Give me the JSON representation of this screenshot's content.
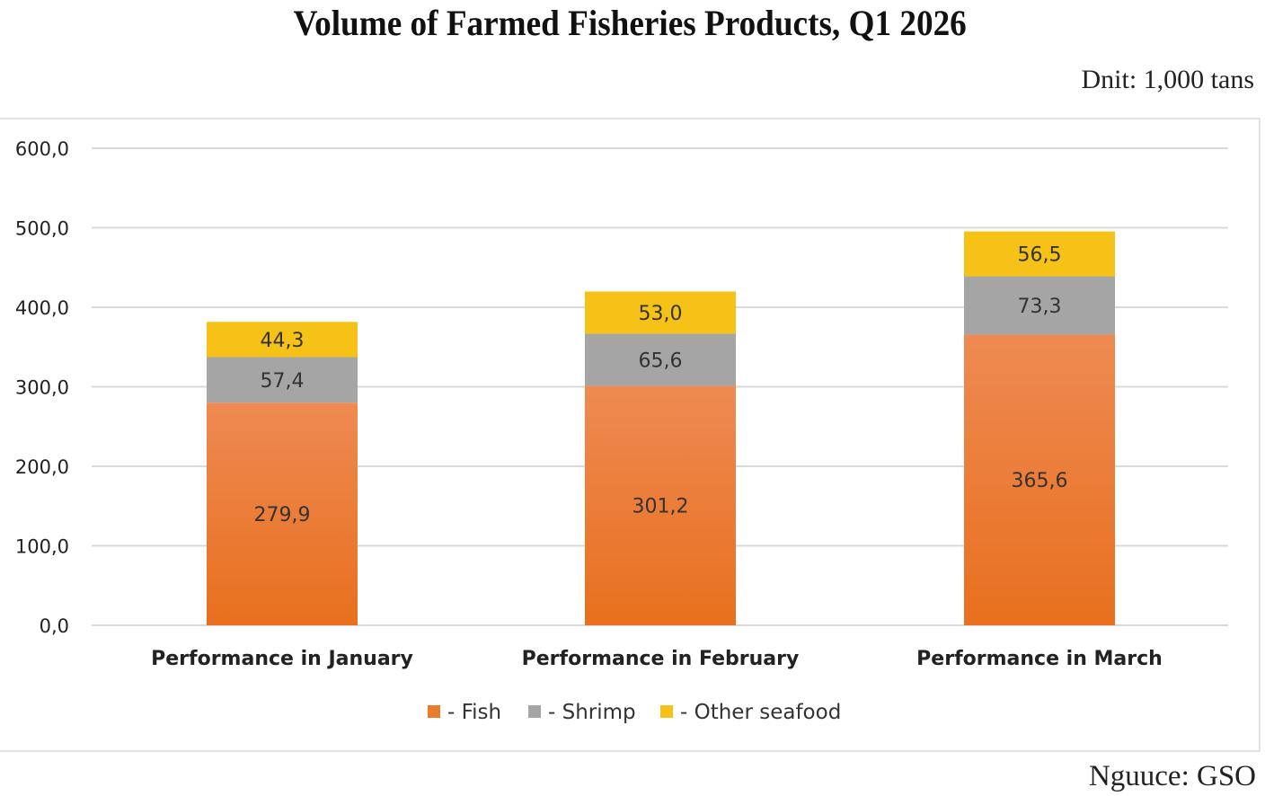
{
  "chart_data": {
    "type": "bar",
    "stacked": true,
    "title": "Volume of Farmed Fisheries Products, Q1 2026",
    "unit_label": "Dnit: 1,000 tans",
    "source": "Nguuce: GSO",
    "categories": [
      "Performance in January",
      "Performance in February",
      "Performance in March"
    ],
    "series": [
      {
        "name": "- Fish",
        "color": "#ea7a2e",
        "values": [
          279.9,
          301.2,
          365.6
        ],
        "labels": [
          "279,9",
          "301,2",
          "365,6"
        ]
      },
      {
        "name": "- Shrimp",
        "color": "#a5a5a5",
        "values": [
          57.4,
          65.6,
          73.3
        ],
        "labels": [
          "57,4",
          "65,6",
          "73,3"
        ]
      },
      {
        "name": "- Other seafood",
        "color": "#f6c218",
        "values": [
          44.3,
          53.0,
          56.5
        ],
        "labels": [
          "44,3",
          "53,0",
          "56,5"
        ]
      }
    ],
    "yticks": [
      0,
      100,
      200,
      300,
      400,
      500,
      600
    ],
    "ytick_labels": [
      "0,0",
      "100,0",
      "200,0",
      "300,0",
      "400,0",
      "500,0",
      "600,0"
    ],
    "ylim": [
      0,
      600
    ],
    "xlabel": "",
    "ylabel": "",
    "grid": true,
    "legend_position": "bottom"
  }
}
